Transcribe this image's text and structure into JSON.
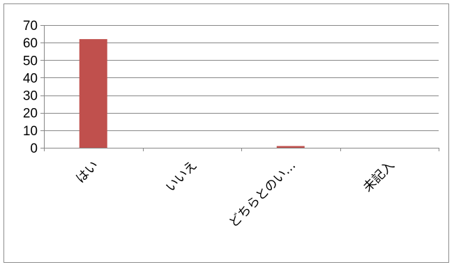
{
  "chart_data": {
    "type": "bar",
    "categories": [
      "はい",
      "いいえ",
      "どちらとのい…",
      "未記入"
    ],
    "values": [
      62,
      0,
      1,
      0
    ],
    "ylim": [
      0,
      70
    ],
    "yticks": [
      0,
      10,
      20,
      30,
      40,
      50,
      60,
      70
    ],
    "grid": true,
    "legend": "none",
    "colors": {
      "bar": "#C0504D",
      "grid": "#868686",
      "axis": "#868686"
    }
  }
}
